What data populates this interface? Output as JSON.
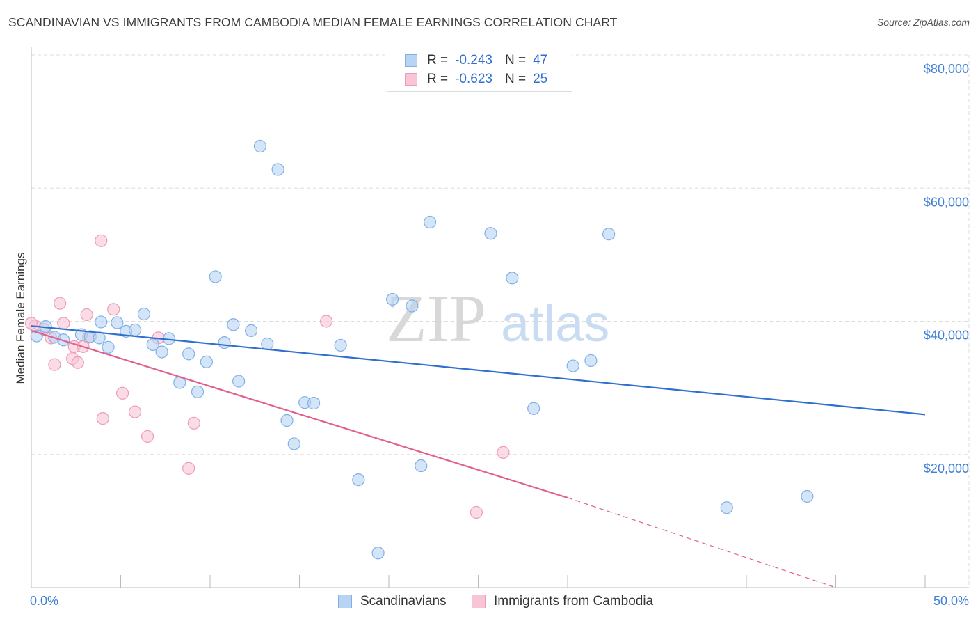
{
  "title": "SCANDINAVIAN VS IMMIGRANTS FROM CAMBODIA MEDIAN FEMALE EARNINGS CORRELATION CHART",
  "source": "Source: ZipAtlas.com",
  "watermark": {
    "zip": "ZIP",
    "atlas": "atlas"
  },
  "legend": {
    "r_label": "R = ",
    "n_label": "N = ",
    "rows": [
      {
        "series": "Scandinavians",
        "r": "-0.243",
        "n": "47"
      },
      {
        "series": "Immigrants from Cambodia",
        "r": "-0.623",
        "n": "25"
      }
    ]
  },
  "colors": {
    "blue_fill": "#b9d3f3",
    "blue_stroke": "#7fb0e8",
    "blue_line": "#2f6fd0",
    "pink_fill": "#f7c5d5",
    "pink_stroke": "#ef9ab6",
    "pink_line": "#e0608e",
    "tick_label": "#3f7fd6",
    "grid": "#dddddd"
  },
  "chart_data": {
    "type": "scatter",
    "xlabel": "",
    "ylabel": "Median Female Earnings",
    "xlim": [
      0,
      50
    ],
    "ylim": [
      0,
      80000
    ],
    "x_tick_labels": [
      "0.0%",
      "50.0%"
    ],
    "y_ticks": [
      20000,
      40000,
      60000,
      80000
    ],
    "y_tick_labels": [
      "$20,000",
      "$40,000",
      "$60,000",
      "$80,000"
    ],
    "grid": true,
    "series": [
      {
        "name": "Scandinavians",
        "points": [
          {
            "x": 0.3,
            "y": 37800
          },
          {
            "x": 0.8,
            "y": 39200
          },
          {
            "x": 1.3,
            "y": 37600
          },
          {
            "x": 1.8,
            "y": 37200
          },
          {
            "x": 2.8,
            "y": 38000
          },
          {
            "x": 3.3,
            "y": 37700
          },
          {
            "x": 3.8,
            "y": 37500
          },
          {
            "x": 3.9,
            "y": 39900
          },
          {
            "x": 4.3,
            "y": 36100
          },
          {
            "x": 4.8,
            "y": 39800
          },
          {
            "x": 5.3,
            "y": 38500
          },
          {
            "x": 5.8,
            "y": 38700
          },
          {
            "x": 6.3,
            "y": 41100
          },
          {
            "x": 6.8,
            "y": 36500
          },
          {
            "x": 7.3,
            "y": 35400
          },
          {
            "x": 7.7,
            "y": 37400
          },
          {
            "x": 8.3,
            "y": 30800
          },
          {
            "x": 8.8,
            "y": 35100
          },
          {
            "x": 9.3,
            "y": 29400
          },
          {
            "x": 9.8,
            "y": 33900
          },
          {
            "x": 10.3,
            "y": 46700
          },
          {
            "x": 10.8,
            "y": 36800
          },
          {
            "x": 11.3,
            "y": 39500
          },
          {
            "x": 11.6,
            "y": 31000
          },
          {
            "x": 12.3,
            "y": 38600
          },
          {
            "x": 12.8,
            "y": 66300
          },
          {
            "x": 13.2,
            "y": 36600
          },
          {
            "x": 13.8,
            "y": 62800
          },
          {
            "x": 14.3,
            "y": 25100
          },
          {
            "x": 14.7,
            "y": 21600
          },
          {
            "x": 15.3,
            "y": 27800
          },
          {
            "x": 15.8,
            "y": 27700
          },
          {
            "x": 17.3,
            "y": 36400
          },
          {
            "x": 18.3,
            "y": 16200
          },
          {
            "x": 19.4,
            "y": 5200
          },
          {
            "x": 20.2,
            "y": 43300
          },
          {
            "x": 21.3,
            "y": 42300
          },
          {
            "x": 21.8,
            "y": 18300
          },
          {
            "x": 22.3,
            "y": 54900
          },
          {
            "x": 25.7,
            "y": 53200
          },
          {
            "x": 26.9,
            "y": 46500
          },
          {
            "x": 28.1,
            "y": 26900
          },
          {
            "x": 30.3,
            "y": 33300
          },
          {
            "x": 31.3,
            "y": 34100
          },
          {
            "x": 32.3,
            "y": 53100
          },
          {
            "x": 38.9,
            "y": 12000
          },
          {
            "x": 43.4,
            "y": 13700
          }
        ],
        "trend": {
          "x": [
            0,
            50
          ],
          "y": [
            39300,
            26000
          ]
        }
      },
      {
        "name": "Immigrants from Cambodia",
        "points": [
          {
            "x": 0.2,
            "y": 39300
          },
          {
            "x": 0.7,
            "y": 38800
          },
          {
            "x": 1.1,
            "y": 37500
          },
          {
            "x": 1.3,
            "y": 33500
          },
          {
            "x": 1.6,
            "y": 42700
          },
          {
            "x": 1.8,
            "y": 39700
          },
          {
            "x": 2.3,
            "y": 34400
          },
          {
            "x": 2.4,
            "y": 36200
          },
          {
            "x": 2.6,
            "y": 33800
          },
          {
            "x": 2.9,
            "y": 36200
          },
          {
            "x": 3.1,
            "y": 41000
          },
          {
            "x": 3.2,
            "y": 37600
          },
          {
            "x": 3.9,
            "y": 52100
          },
          {
            "x": 4.0,
            "y": 25400
          },
          {
            "x": 4.6,
            "y": 41800
          },
          {
            "x": 5.1,
            "y": 29200
          },
          {
            "x": 5.8,
            "y": 26400
          },
          {
            "x": 6.5,
            "y": 22700
          },
          {
            "x": 7.1,
            "y": 37500
          },
          {
            "x": 8.8,
            "y": 17900
          },
          {
            "x": 9.1,
            "y": 24700
          },
          {
            "x": 16.5,
            "y": 40000
          },
          {
            "x": 24.9,
            "y": 11300
          },
          {
            "x": 26.4,
            "y": 20300
          },
          {
            "x": 0.0,
            "y": 39700
          }
        ],
        "trend": {
          "x": [
            0,
            30
          ],
          "y": [
            38600,
            13500
          ]
        },
        "trend_dashed": {
          "x": [
            30,
            45
          ],
          "y": [
            13500,
            0
          ]
        }
      }
    ]
  }
}
